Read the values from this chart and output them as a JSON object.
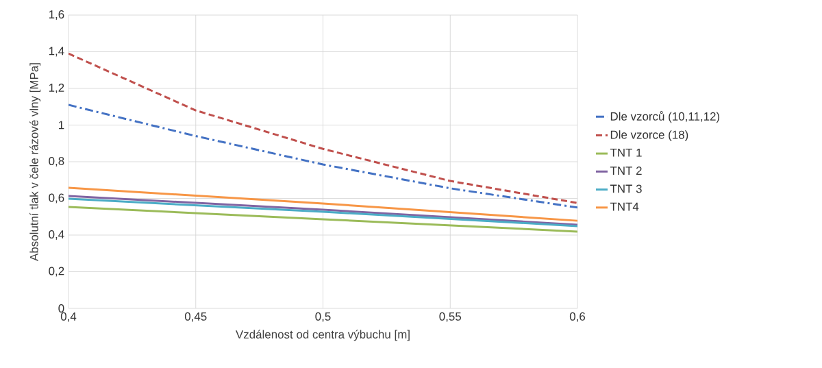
{
  "chart_data": {
    "type": "line",
    "xlabel": "Vzdálenost od centra výbuchu [m]",
    "ylabel": "Absolutní tlak v čele rázové vlny [MPa]",
    "x": [
      0.4,
      0.45,
      0.5,
      0.55,
      0.6
    ],
    "series": [
      {
        "name": "Dle vzorců (10,11,12)",
        "color": "#4472c4",
        "line_style": "dashdot",
        "values": [
          1.11,
          0.94,
          0.785,
          0.655,
          0.55
        ]
      },
      {
        "name": "Dle vzorce (18)",
        "color": "#c0504d",
        "line_style": "dashed",
        "values": [
          1.39,
          1.08,
          0.87,
          0.695,
          0.575
        ]
      },
      {
        "name": "TNT 1",
        "color": "#9bbb59",
        "line_style": "solid",
        "x": [
          0.4,
          0.5,
          0.6
        ],
        "values": [
          0.553,
          0.486,
          0.419
        ]
      },
      {
        "name": "TNT 2",
        "color": "#8064a2",
        "line_style": "solid",
        "x": [
          0.4,
          0.5,
          0.6
        ],
        "values": [
          0.613,
          0.538,
          0.456
        ]
      },
      {
        "name": "TNT 3",
        "color": "#4bacc6",
        "line_style": "solid",
        "x": [
          0.4,
          0.5,
          0.6
        ],
        "values": [
          0.598,
          0.527,
          0.449
        ]
      },
      {
        "name": "TNT4",
        "color": "#f79646",
        "line_style": "solid",
        "x": [
          0.4,
          0.5,
          0.6
        ],
        "values": [
          0.658,
          0.572,
          0.478
        ]
      }
    ],
    "xlim": [
      0.4,
      0.6
    ],
    "xticks": [
      {
        "value": 0.4,
        "label": "0,4"
      },
      {
        "value": 0.45,
        "label": "0,45"
      },
      {
        "value": 0.5,
        "label": "0,5"
      },
      {
        "value": 0.55,
        "label": "0,55"
      },
      {
        "value": 0.6,
        "label": "0,6"
      }
    ],
    "ylim": [
      0,
      1.6
    ],
    "yticks": [
      0,
      {
        "value": 0.2,
        "label": "0,2"
      },
      {
        "value": 0.4,
        "label": "0,4"
      },
      {
        "value": 0.6,
        "label": "0,6"
      },
      {
        "value": 0.8,
        "label": "0,8"
      },
      1,
      {
        "value": 1.2,
        "label": "1,2"
      },
      {
        "value": 1.4,
        "label": "1,4"
      },
      {
        "value": 1.6,
        "label": "1,6"
      }
    ],
    "grid": true,
    "legend": "right",
    "marker": "none"
  }
}
